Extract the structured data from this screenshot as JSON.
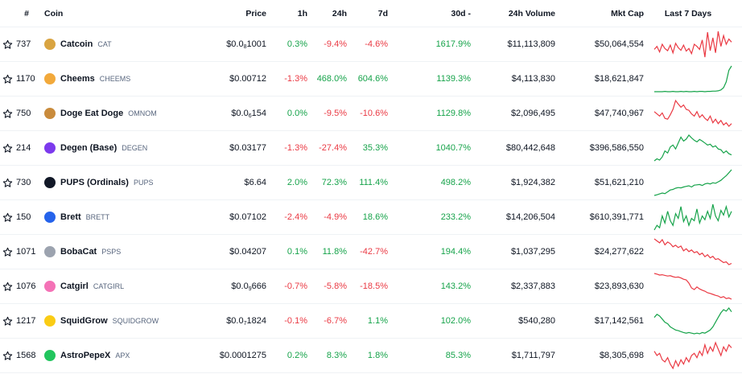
{
  "header": {
    "rank": "#",
    "coin": "Coin",
    "price": "Price",
    "h1": "1h",
    "h24": "24h",
    "d7": "7d",
    "d30": "30d",
    "d30_sort_indicator": "-",
    "volume": "24h Volume",
    "mcap": "Mkt Cap",
    "spark": "Last 7 Days"
  },
  "colors": {
    "positive": "#16a34a",
    "negative": "#ea3943"
  },
  "rows": [
    {
      "rank": "737",
      "name": "Catcoin",
      "symbol": "CAT",
      "icon": "catcoin-icon",
      "icon_color": "#d9a441",
      "price_prefix": "$0.0",
      "price_sub": "8",
      "price_rest": "1001",
      "h1": "0.3%",
      "h1_dir": "pos",
      "h24": "-9.4%",
      "h24_dir": "neg",
      "d7": "-4.6%",
      "d7_dir": "neg",
      "d30": "1617.9%",
      "d30_dir": "pos",
      "volume": "$11,113,809",
      "mcap": "$50,064,554",
      "spark_dir": "neg",
      "spark": [
        48,
        55,
        42,
        60,
        50,
        45,
        58,
        40,
        62,
        52,
        46,
        58,
        44,
        50,
        38,
        60,
        55,
        48,
        70,
        30,
        88,
        45,
        75,
        40,
        90,
        55,
        80,
        60,
        72,
        65
      ]
    },
    {
      "rank": "1170",
      "name": "Cheems",
      "symbol": "CHEEMS",
      "icon": "cheems-icon",
      "icon_color": "#f2a93b",
      "price_prefix": "$0.00712",
      "price_sub": "",
      "price_rest": "",
      "h1": "-1.3%",
      "h1_dir": "neg",
      "h24": "468.0%",
      "h24_dir": "pos",
      "d7": "604.6%",
      "d7_dir": "pos",
      "d30": "1139.3%",
      "d30_dir": "pos",
      "volume": "$4,113,830",
      "mcap": "$18,621,847",
      "spark_dir": "pos",
      "spark": [
        6,
        6,
        6,
        6,
        7,
        6,
        6,
        7,
        6,
        6,
        7,
        6,
        7,
        6,
        6,
        7,
        6,
        7,
        7,
        6,
        7,
        7,
        8,
        8,
        9,
        12,
        20,
        40,
        80,
        95
      ]
    },
    {
      "rank": "750",
      "name": "Doge Eat Doge",
      "symbol": "OMNOM",
      "icon": "doge-eat-doge-icon",
      "icon_color": "#c98b3c",
      "price_prefix": "$0.0",
      "price_sub": "6",
      "price_rest": "154",
      "h1": "0.0%",
      "h1_dir": "pos",
      "h24": "-9.5%",
      "h24_dir": "neg",
      "d7": "-10.6%",
      "d7_dir": "neg",
      "d30": "1129.8%",
      "d30_dir": "pos",
      "volume": "$2,096,495",
      "mcap": "$47,740,967",
      "spark_dir": "neg",
      "spark": [
        55,
        50,
        45,
        52,
        40,
        38,
        48,
        60,
        80,
        72,
        65,
        70,
        60,
        58,
        50,
        45,
        55,
        42,
        48,
        40,
        35,
        45,
        30,
        38,
        28,
        35,
        25,
        30,
        22,
        28
      ]
    },
    {
      "rank": "214",
      "name": "Degen (Base)",
      "symbol": "DEGEN",
      "icon": "degen-icon",
      "icon_color": "#7c3aed",
      "price_prefix": "$0.03177",
      "price_sub": "",
      "price_rest": "",
      "h1": "-1.3%",
      "h1_dir": "neg",
      "h24": "-27.4%",
      "h24_dir": "neg",
      "d7": "35.3%",
      "d7_dir": "pos",
      "d30": "1040.7%",
      "d30_dir": "pos",
      "volume": "$80,442,648",
      "mcap": "$396,586,550",
      "spark_dir": "pos",
      "spark": [
        20,
        25,
        22,
        30,
        45,
        40,
        55,
        60,
        50,
        65,
        80,
        70,
        75,
        85,
        78,
        72,
        68,
        74,
        70,
        65,
        60,
        62,
        55,
        58,
        50,
        48,
        40,
        45,
        38,
        35
      ]
    },
    {
      "rank": "730",
      "name": "PUPS (Ordinals)",
      "symbol": "PUPS",
      "icon": "pups-icon",
      "icon_color": "#111827",
      "price_prefix": "$6.64",
      "price_sub": "",
      "price_rest": "",
      "h1": "2.0%",
      "h1_dir": "pos",
      "h24": "72.3%",
      "h24_dir": "pos",
      "d7": "111.4%",
      "d7_dir": "pos",
      "d30": "498.2%",
      "d30_dir": "pos",
      "volume": "$1,924,382",
      "mcap": "$51,621,210",
      "spark_dir": "pos",
      "spark": [
        10,
        12,
        15,
        18,
        16,
        22,
        28,
        30,
        34,
        36,
        35,
        38,
        40,
        42,
        38,
        44,
        45,
        46,
        43,
        48,
        50,
        48,
        52,
        50,
        55,
        60,
        68,
        75,
        85,
        95
      ]
    },
    {
      "rank": "150",
      "name": "Brett",
      "symbol": "BRETT",
      "icon": "brett-icon",
      "icon_color": "#2563eb",
      "price_prefix": "$0.07102",
      "price_sub": "",
      "price_rest": "",
      "h1": "-2.4%",
      "h1_dir": "neg",
      "h24": "-4.9%",
      "h24_dir": "neg",
      "d7": "18.6%",
      "d7_dir": "pos",
      "d30": "233.2%",
      "d30_dir": "pos",
      "volume": "$14,206,504",
      "mcap": "$610,391,771",
      "spark_dir": "pos",
      "spark": [
        30,
        40,
        35,
        60,
        45,
        70,
        50,
        40,
        65,
        55,
        80,
        48,
        60,
        40,
        55,
        50,
        75,
        45,
        60,
        52,
        70,
        55,
        85,
        60,
        50,
        72,
        62,
        80,
        58,
        70
      ]
    },
    {
      "rank": "1071",
      "name": "BobaCat",
      "symbol": "PSPS",
      "icon": "bobacat-icon",
      "icon_color": "#9ca3af",
      "price_prefix": "$0.04207",
      "price_sub": "",
      "price_rest": "",
      "h1": "0.1%",
      "h1_dir": "pos",
      "h24": "11.8%",
      "h24_dir": "pos",
      "d7": "-42.7%",
      "d7_dir": "neg",
      "d30": "194.4%",
      "d30_dir": "pos",
      "volume": "$1,037,295",
      "mcap": "$24,277,622",
      "spark_dir": "neg",
      "spark": [
        90,
        85,
        80,
        88,
        75,
        82,
        78,
        70,
        74,
        68,
        72,
        60,
        65,
        58,
        62,
        55,
        58,
        50,
        54,
        45,
        50,
        42,
        46,
        38,
        40,
        35,
        30,
        32,
        25,
        28
      ]
    },
    {
      "rank": "1076",
      "name": "Catgirl",
      "symbol": "CATGIRL",
      "icon": "catgirl-icon",
      "icon_color": "#f472b6",
      "price_prefix": "$0.0",
      "price_sub": "9",
      "price_rest": "666",
      "h1": "-0.7%",
      "h1_dir": "neg",
      "h24": "-5.8%",
      "h24_dir": "neg",
      "d7": "-18.5%",
      "d7_dir": "neg",
      "d30": "143.2%",
      "d30_dir": "pos",
      "volume": "$2,337,883",
      "mcap": "$23,893,630",
      "spark_dir": "neg",
      "spark": [
        90,
        88,
        85,
        86,
        84,
        82,
        83,
        80,
        78,
        79,
        76,
        72,
        70,
        60,
        45,
        40,
        48,
        42,
        38,
        35,
        30,
        28,
        25,
        22,
        20,
        15,
        18,
        12,
        14,
        10
      ]
    },
    {
      "rank": "1217",
      "name": "SquidGrow",
      "symbol": "SQUIDGROW",
      "icon": "squidgrow-icon",
      "icon_color": "#facc15",
      "price_prefix": "$0.0",
      "price_sub": "7",
      "price_rest": "1824",
      "h1": "-0.1%",
      "h1_dir": "neg",
      "h24": "-6.7%",
      "h24_dir": "neg",
      "d7": "1.1%",
      "d7_dir": "pos",
      "d30": "102.0%",
      "d30_dir": "pos",
      "volume": "$540,280",
      "mcap": "$17,142,561",
      "spark_dir": "pos",
      "spark": [
        60,
        70,
        65,
        55,
        45,
        40,
        30,
        25,
        20,
        18,
        15,
        12,
        10,
        12,
        10,
        8,
        10,
        8,
        12,
        10,
        15,
        20,
        30,
        45,
        60,
        75,
        85,
        80,
        90,
        78
      ]
    },
    {
      "rank": "1568",
      "name": "AstroPepeX",
      "symbol": "APX",
      "icon": "astropepex-icon",
      "icon_color": "#22c55e",
      "price_prefix": "$0.0001275",
      "price_sub": "",
      "price_rest": "",
      "h1": "0.2%",
      "h1_dir": "pos",
      "h24": "8.3%",
      "h24_dir": "pos",
      "d7": "1.8%",
      "d7_dir": "pos",
      "d30": "85.3%",
      "d30_dir": "pos",
      "volume": "$1,711,797",
      "mcap": "$8,305,698",
      "spark_dir": "neg",
      "spark": [
        60,
        50,
        55,
        40,
        35,
        45,
        30,
        20,
        38,
        25,
        40,
        30,
        45,
        35,
        50,
        55,
        45,
        60,
        50,
        75,
        55,
        70,
        60,
        80,
        65,
        50,
        70,
        60,
        75,
        68
      ]
    }
  ]
}
